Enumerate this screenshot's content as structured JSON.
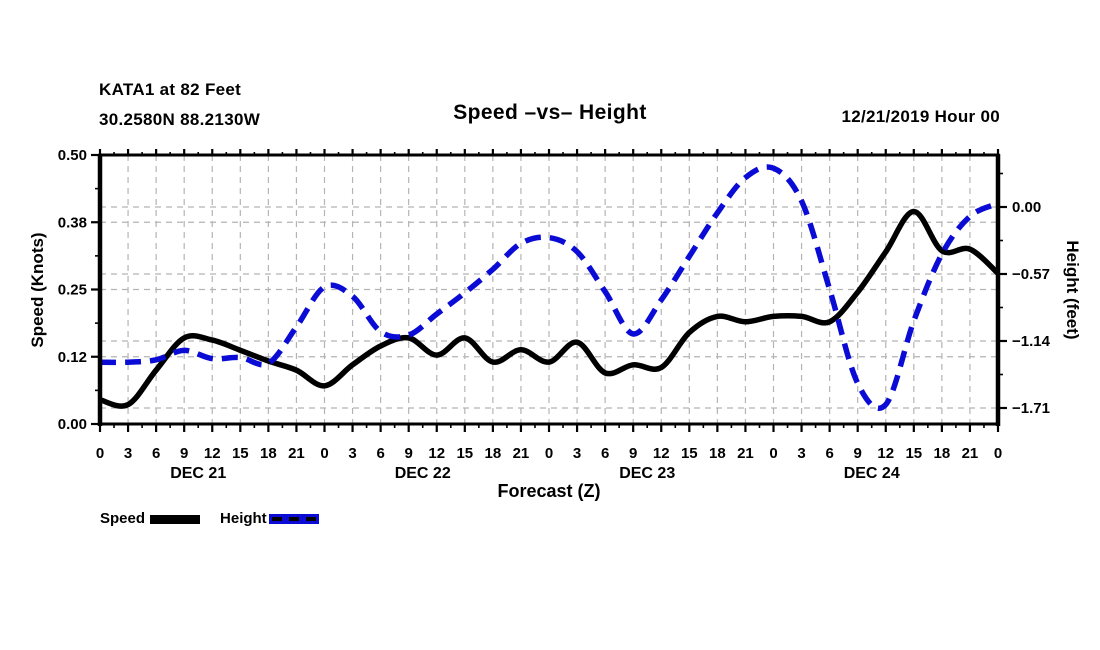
{
  "page": {
    "background": "#ffffff"
  },
  "header": {
    "station": "KATA1 at 82 Feet",
    "coordinates": "30.2580N 88.2130W",
    "title": "Speed –vs– Height",
    "datetime": "12/21/2019 Hour 00"
  },
  "legend": {
    "items": [
      {
        "label": "Speed",
        "color": "#000000",
        "style": "solid"
      },
      {
        "label": "Height",
        "color": "#0b0bd6",
        "style": "dashed"
      }
    ]
  },
  "colors": {
    "speed_line": "#000000",
    "height_line": "#0b0bd6",
    "grid": "#b4b4b4",
    "axis": "#000000"
  },
  "chart_data": {
    "type": "line",
    "title": "Speed -vs- Height",
    "grid": true,
    "x_axis": {
      "label": "Forecast (Z)",
      "unit": "hours",
      "range_hours": [
        0,
        96
      ],
      "tick_step_hours": 3,
      "hour_tick_labels": [
        "0",
        "3",
        "6",
        "9",
        "12",
        "15",
        "18",
        "21",
        "0",
        "3",
        "6",
        "9",
        "12",
        "15",
        "18",
        "21",
        "0",
        "3",
        "6",
        "9",
        "12",
        "15",
        "18",
        "21",
        "0",
        "3",
        "6",
        "9",
        "12",
        "15",
        "18",
        "21",
        "0"
      ],
      "days": [
        {
          "label": "DEC 21",
          "center_hour": 10.5
        },
        {
          "label": "DEC 22",
          "center_hour": 34.5
        },
        {
          "label": "DEC 23",
          "center_hour": 58.5
        },
        {
          "label": "DEC 24",
          "center_hour": 82.5
        }
      ]
    },
    "y_left": {
      "label": "Speed (Knots)",
      "range": [
        0,
        0.5
      ],
      "ticks": [
        {
          "value": 0.5,
          "label": "0.50"
        },
        {
          "value": 0.375,
          "label": "0.38"
        },
        {
          "value": 0.25,
          "label": "0.25"
        },
        {
          "value": 0.125,
          "label": "0.12"
        },
        {
          "value": 0.0,
          "label": "0.00"
        }
      ]
    },
    "y_right": {
      "label": "Height (feet)",
      "ticks": [
        {
          "value": 0.0,
          "label": "0.00"
        },
        {
          "value": -0.57,
          "label": "−0.57"
        },
        {
          "value": -1.14,
          "label": "−1.14"
        },
        {
          "value": -1.71,
          "label": "−1.71"
        }
      ]
    },
    "x_hours": [
      0,
      3,
      6,
      9,
      12,
      15,
      18,
      21,
      24,
      27,
      30,
      33,
      36,
      39,
      42,
      45,
      48,
      51,
      54,
      57,
      60,
      63,
      66,
      69,
      72,
      75,
      78,
      81,
      84,
      87,
      90,
      93,
      96
    ],
    "series": [
      {
        "name": "Speed",
        "axis": "left",
        "units": "Knots",
        "color": "#000000",
        "line_style": "solid",
        "values": [
          0.045,
          0.036,
          0.1,
          0.16,
          0.156,
          0.137,
          0.117,
          0.1,
          0.071,
          0.11,
          0.145,
          0.16,
          0.128,
          0.16,
          0.115,
          0.138,
          0.115,
          0.152,
          0.095,
          0.11,
          0.105,
          0.17,
          0.2,
          0.19,
          0.2,
          0.2,
          0.19,
          0.245,
          0.32,
          0.395,
          0.322,
          0.325,
          0.28
        ]
      },
      {
        "name": "Height",
        "axis": "right",
        "units": "feet",
        "color": "#0b0bd6",
        "line_style": "dashed",
        "values": [
          -1.32,
          -1.32,
          -1.3,
          -1.22,
          -1.29,
          -1.28,
          -1.33,
          -1.02,
          -0.68,
          -0.76,
          -1.06,
          -1.09,
          -0.91,
          -0.73,
          -0.53,
          -0.31,
          -0.26,
          -0.38,
          -0.72,
          -1.08,
          -0.79,
          -0.42,
          -0.05,
          0.25,
          0.33,
          0.05,
          -0.7,
          -1.5,
          -1.68,
          -0.97,
          -0.4,
          -0.08,
          0.03
        ]
      }
    ]
  }
}
